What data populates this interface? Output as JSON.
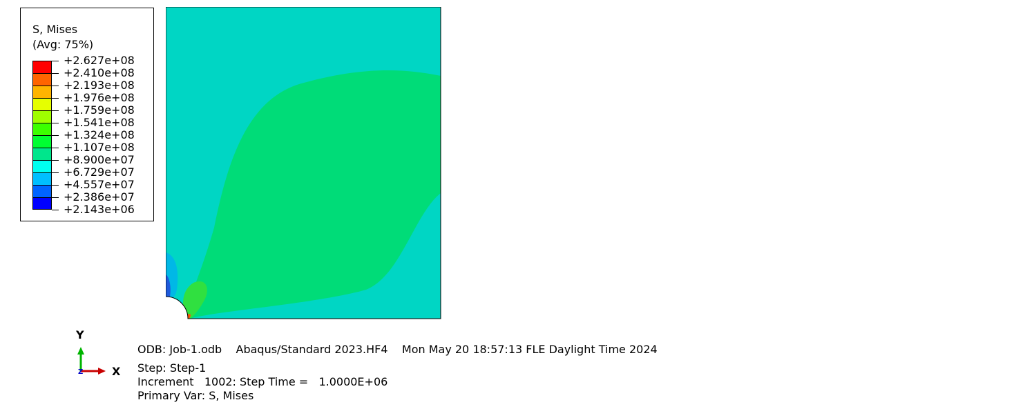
{
  "legend": {
    "title": "S, Mises",
    "subtitle": "(Avg: 75%)",
    "levels": [
      {
        "label": "+2.627e+08",
        "color": "#ff0000"
      },
      {
        "label": "+2.410e+08",
        "color": "#ff5a00"
      },
      {
        "label": "+2.193e+08",
        "color": "#ffb400"
      },
      {
        "label": "+1.976e+08",
        "color": "#e6ff00"
      },
      {
        "label": "+1.759e+08",
        "color": "#aaff00"
      },
      {
        "label": "+1.541e+08",
        "color": "#46ff00"
      },
      {
        "label": "+1.324e+08",
        "color": "#00ff5a"
      },
      {
        "label": "+1.107e+08",
        "color": "#00e67a"
      },
      {
        "label": "+8.900e+07",
        "color": "#00ffd2"
      },
      {
        "label": "+6.729e+07",
        "color": "#00d2ff"
      },
      {
        "label": "+4.557e+07",
        "color": "#0078ff"
      },
      {
        "label": "+2.386e+07",
        "color": "#001eff"
      },
      {
        "label": "+2.143e+06",
        "color": "#0000ff"
      }
    ],
    "swatch_colors": [
      "#ff0000",
      "#ff6400",
      "#ffb400",
      "#e6ff00",
      "#a0ff00",
      "#3cff00",
      "#00ff32",
      "#00e68c",
      "#00fff0",
      "#00bfff",
      "#0064ff",
      "#0000ff"
    ]
  },
  "plot": {
    "background_color": "#00d6c4",
    "region_color": "#00dc78",
    "outline_color": "#000000"
  },
  "triad": {
    "y_label": "Y",
    "x_label": "X",
    "z_label": "Z",
    "y_color": "#00b400",
    "x_color": "#c80000",
    "z_color": "#0000c8"
  },
  "info": {
    "odb_line": "ODB: Job-1.odb    Abaqus/Standard 2023.HF4    Mon May 20 18:57:13 FLE Daylight Time 2024",
    "step_line": "Step: Step-1",
    "increment_line": "Increment   1002: Step Time =   1.0000E+06",
    "primary_var_line": "Primary Var: S, Mises"
  }
}
